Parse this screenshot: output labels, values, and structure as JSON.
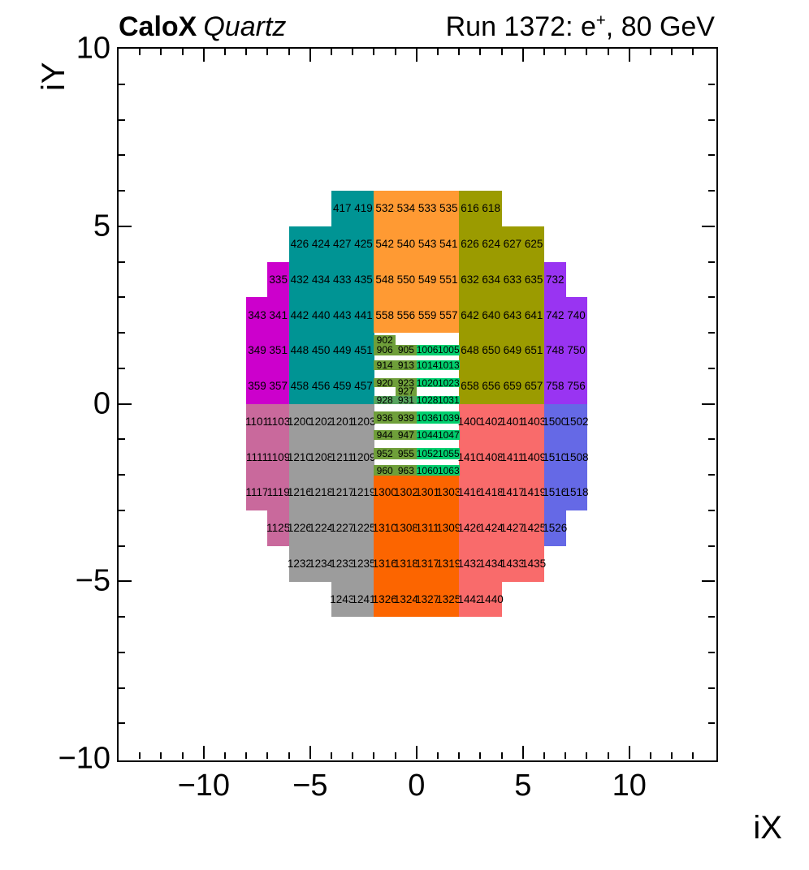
{
  "header": {
    "experiment": "CaloX",
    "detector": "Quartz",
    "run_prefix": "Run 1372: e",
    "run_sup": "+",
    "run_suffix": ", 80 GeV"
  },
  "chart_data": {
    "type": "heatmap",
    "title": "Run 1372: e+, 80 GeV",
    "xlabel": "iX",
    "ylabel": "iY",
    "xlim": [
      -14,
      14
    ],
    "ylim": [
      -10,
      10
    ],
    "grid": false,
    "legend": "none",
    "x_major_ticks": [
      {
        "v": -10,
        "t": "−10"
      },
      {
        "v": -5,
        "t": "−5"
      },
      {
        "v": 0,
        "t": "0"
      },
      {
        "v": 5,
        "t": "5"
      },
      {
        "v": 10,
        "t": "10"
      }
    ],
    "y_major_ticks": [
      {
        "v": -10,
        "t": "−10"
      },
      {
        "v": -5,
        "t": "−5"
      },
      {
        "v": 0,
        "t": "0"
      },
      {
        "v": 5,
        "t": "5"
      },
      {
        "v": 10,
        "t": "10"
      }
    ],
    "minor_tick_step": 1,
    "block_colors": {
      "b300": "#cc00cc",
      "b400": "#009494",
      "b500": "#ff9a33",
      "b600": "#9b9b00",
      "b700": "#9934f2",
      "b900": "#6f9f3a",
      "b928": "#58a55f",
      "b1000": "#00cf6e",
      "b1100": "#c9699c",
      "b1200": "#9c9c9c",
      "b1300": "#fc6500",
      "b1400": "#f96b6b",
      "b1500": "#6569e6"
    },
    "rows": [
      {
        "iy": 6,
        "cells": [
          [
            -4,
            "417",
            "b400"
          ],
          [
            -3,
            "419",
            "b400"
          ],
          [
            -2,
            "532",
            "b500"
          ],
          [
            -1,
            "534",
            "b500"
          ],
          [
            0,
            "533",
            "b500"
          ],
          [
            1,
            "535",
            "b500"
          ],
          [
            2,
            "616",
            "b600"
          ],
          [
            3,
            "618",
            "b600"
          ]
        ]
      },
      {
        "iy": 5,
        "cells": [
          [
            -6,
            "426",
            "b400"
          ],
          [
            -5,
            "424",
            "b400"
          ],
          [
            -4,
            "427",
            "b400"
          ],
          [
            -3,
            "425",
            "b400"
          ],
          [
            -2,
            "542",
            "b500"
          ],
          [
            -1,
            "540",
            "b500"
          ],
          [
            0,
            "543",
            "b500"
          ],
          [
            1,
            "541",
            "b500"
          ],
          [
            2,
            "626",
            "b600"
          ],
          [
            3,
            "624",
            "b600"
          ],
          [
            4,
            "627",
            "b600"
          ],
          [
            5,
            "625",
            "b600"
          ]
        ]
      },
      {
        "iy": 4,
        "cells": [
          [
            -7,
            "335",
            "b300"
          ],
          [
            -6,
            "432",
            "b400"
          ],
          [
            -5,
            "434",
            "b400"
          ],
          [
            -4,
            "433",
            "b400"
          ],
          [
            -3,
            "435",
            "b400"
          ],
          [
            -2,
            "548",
            "b500"
          ],
          [
            -1,
            "550",
            "b500"
          ],
          [
            0,
            "549",
            "b500"
          ],
          [
            1,
            "551",
            "b500"
          ],
          [
            2,
            "632",
            "b600"
          ],
          [
            3,
            "634",
            "b600"
          ],
          [
            4,
            "633",
            "b600"
          ],
          [
            5,
            "635",
            "b600"
          ],
          [
            6,
            "732",
            "b700"
          ]
        ]
      },
      {
        "iy": 3,
        "cells": [
          [
            -8,
            "343",
            "b300"
          ],
          [
            -7,
            "341",
            "b300"
          ],
          [
            -6,
            "442",
            "b400"
          ],
          [
            -5,
            "440",
            "b400"
          ],
          [
            -4,
            "443",
            "b400"
          ],
          [
            -3,
            "441",
            "b400"
          ],
          [
            -2,
            "558",
            "b500"
          ],
          [
            -1,
            "556",
            "b500"
          ],
          [
            0,
            "559",
            "b500"
          ],
          [
            1,
            "557",
            "b500"
          ],
          [
            2,
            "642",
            "b600"
          ],
          [
            3,
            "640",
            "b600"
          ],
          [
            4,
            "643",
            "b600"
          ],
          [
            5,
            "641",
            "b600"
          ],
          [
            6,
            "742",
            "b700"
          ],
          [
            7,
            "740",
            "b700"
          ]
        ]
      },
      {
        "iy": 2,
        "cells": [
          [
            -8,
            "349",
            "b300"
          ],
          [
            -7,
            "351",
            "b300"
          ],
          [
            -6,
            "448",
            "b400"
          ],
          [
            -5,
            "450",
            "b400"
          ],
          [
            -4,
            "449",
            "b400"
          ],
          [
            -3,
            "451",
            "b400"
          ],
          [
            2,
            "648",
            "b600"
          ],
          [
            3,
            "650",
            "b600"
          ],
          [
            4,
            "649",
            "b600"
          ],
          [
            5,
            "651",
            "b600"
          ],
          [
            6,
            "748",
            "b700"
          ],
          [
            7,
            "750",
            "b700"
          ]
        ]
      },
      {
        "iy": 1,
        "cells": [
          [
            -8,
            "359",
            "b300"
          ],
          [
            -7,
            "357",
            "b300"
          ],
          [
            -6,
            "458",
            "b400"
          ],
          [
            -5,
            "456",
            "b400"
          ],
          [
            -4,
            "459",
            "b400"
          ],
          [
            -3,
            "457",
            "b400"
          ],
          [
            2,
            "658",
            "b600"
          ],
          [
            3,
            "656",
            "b600"
          ],
          [
            4,
            "659",
            "b600"
          ],
          [
            5,
            "657",
            "b600"
          ],
          [
            6,
            "758",
            "b700"
          ],
          [
            7,
            "756",
            "b700"
          ]
        ]
      },
      {
        "iy": 0,
        "cells": [
          [
            -8,
            "1101",
            "b1100"
          ],
          [
            -7,
            "1103",
            "b1100"
          ],
          [
            -6,
            "1200",
            "b1200"
          ],
          [
            -5,
            "1202",
            "b1200"
          ],
          [
            -4,
            "1201",
            "b1200"
          ],
          [
            -3,
            "1203",
            "b1200"
          ],
          [
            2,
            "1400",
            "b1400"
          ],
          [
            3,
            "1402",
            "b1400"
          ],
          [
            4,
            "1401",
            "b1400"
          ],
          [
            5,
            "1403",
            "b1400"
          ],
          [
            6,
            "1500",
            "b1500"
          ],
          [
            7,
            "1502",
            "b1500"
          ]
        ]
      },
      {
        "iy": -1,
        "cells": [
          [
            -8,
            "1111",
            "b1100"
          ],
          [
            -7,
            "1109",
            "b1100"
          ],
          [
            -6,
            "1210",
            "b1200"
          ],
          [
            -5,
            "1208",
            "b1200"
          ],
          [
            -4,
            "1211",
            "b1200"
          ],
          [
            -3,
            "1209",
            "b1200"
          ],
          [
            2,
            "1410",
            "b1400"
          ],
          [
            3,
            "1408",
            "b1400"
          ],
          [
            4,
            "1411",
            "b1400"
          ],
          [
            5,
            "1409",
            "b1400"
          ],
          [
            6,
            "1510",
            "b1500"
          ],
          [
            7,
            "1508",
            "b1500"
          ]
        ]
      },
      {
        "iy": -2,
        "cells": [
          [
            -8,
            "1117",
            "b1100"
          ],
          [
            -7,
            "1119",
            "b1100"
          ],
          [
            -6,
            "1216",
            "b1200"
          ],
          [
            -5,
            "1218",
            "b1200"
          ],
          [
            -4,
            "1217",
            "b1200"
          ],
          [
            -3,
            "1219",
            "b1200"
          ],
          [
            -2,
            "1300",
            "b1300"
          ],
          [
            -1,
            "1302",
            "b1300"
          ],
          [
            0,
            "1301",
            "b1300"
          ],
          [
            1,
            "1303",
            "b1300"
          ],
          [
            2,
            "1416",
            "b1400"
          ],
          [
            3,
            "1418",
            "b1400"
          ],
          [
            4,
            "1417",
            "b1400"
          ],
          [
            5,
            "1419",
            "b1400"
          ],
          [
            6,
            "1516",
            "b1500"
          ],
          [
            7,
            "1518",
            "b1500"
          ]
        ]
      },
      {
        "iy": -3,
        "cells": [
          [
            -7,
            "1125",
            "b1100"
          ],
          [
            -6,
            "1226",
            "b1200"
          ],
          [
            -5,
            "1224",
            "b1200"
          ],
          [
            -4,
            "1227",
            "b1200"
          ],
          [
            -3,
            "1225",
            "b1200"
          ],
          [
            -2,
            "1310",
            "b1300"
          ],
          [
            -1,
            "1308",
            "b1300"
          ],
          [
            0,
            "1311",
            "b1300"
          ],
          [
            1,
            "1309",
            "b1300"
          ],
          [
            2,
            "1426",
            "b1400"
          ],
          [
            3,
            "1424",
            "b1400"
          ],
          [
            4,
            "1427",
            "b1400"
          ],
          [
            5,
            "1425",
            "b1400"
          ],
          [
            6,
            "1526",
            "b1500"
          ]
        ]
      },
      {
        "iy": -4,
        "cells": [
          [
            -6,
            "1232",
            "b1200"
          ],
          [
            -5,
            "1234",
            "b1200"
          ],
          [
            -4,
            "1233",
            "b1200"
          ],
          [
            -3,
            "1235",
            "b1200"
          ],
          [
            -2,
            "1316",
            "b1300"
          ],
          [
            -1,
            "1318",
            "b1300"
          ],
          [
            0,
            "1317",
            "b1300"
          ],
          [
            1,
            "1319",
            "b1300"
          ],
          [
            2,
            "1432",
            "b1400"
          ],
          [
            3,
            "1434",
            "b1400"
          ],
          [
            4,
            "1433",
            "b1400"
          ],
          [
            5,
            "1435",
            "b1400"
          ]
        ]
      },
      {
        "iy": -5,
        "cells": [
          [
            -4,
            "1243",
            "b1200"
          ],
          [
            -3,
            "1241",
            "b1200"
          ],
          [
            -2,
            "1326",
            "b1300"
          ],
          [
            -1,
            "1324",
            "b1300"
          ],
          [
            0,
            "1327",
            "b1300"
          ],
          [
            1,
            "1325",
            "b1300"
          ],
          [
            2,
            "1442",
            "b1400"
          ],
          [
            3,
            "1440",
            "b1400"
          ]
        ]
      }
    ],
    "fine_rows": [
      {
        "top": 1.94,
        "h": 0.29,
        "cells": [
          [
            -2,
            "902",
            "b900"
          ]
        ]
      },
      {
        "top": 1.66,
        "h": 0.28,
        "cells": [
          [
            -2,
            "906",
            "b900"
          ],
          [
            -1,
            "905",
            "b900"
          ],
          [
            0,
            "1006",
            "b1000"
          ],
          [
            1,
            "1005",
            "b1000"
          ]
        ]
      },
      {
        "top": 1.23,
        "h": 0.27,
        "cells": [
          [
            -2,
            "914",
            "b900"
          ],
          [
            -1,
            "913",
            "b900"
          ],
          [
            0,
            "1014",
            "b1000"
          ],
          [
            1,
            "1013",
            "b1000"
          ]
        ]
      },
      {
        "top": 0.73,
        "h": 0.26,
        "cells": [
          [
            -2,
            "920",
            "b900"
          ],
          [
            -1,
            "923",
            "b900"
          ],
          [
            0,
            "1020",
            "b1000"
          ],
          [
            1,
            "1023",
            "b1000"
          ]
        ]
      },
      {
        "top": 0.47,
        "h": 0.24,
        "cells": [
          [
            -1,
            "927",
            "b900"
          ]
        ]
      },
      {
        "top": 0.22,
        "h": 0.23,
        "cells": [
          [
            -2,
            "928",
            "b928"
          ],
          [
            -1,
            "931",
            "b928"
          ],
          [
            0,
            "1028",
            "b1000"
          ],
          [
            1,
            "1031",
            "b1000"
          ]
        ]
      },
      {
        "top": -0.22,
        "h": 0.34,
        "cells": [
          [
            -2,
            "936",
            "b900"
          ],
          [
            -1,
            "939",
            "b900"
          ],
          [
            0,
            "1036",
            "b1000"
          ],
          [
            1,
            "1039",
            "b1000"
          ]
        ]
      },
      {
        "top": -0.74,
        "h": 0.27,
        "cells": [
          [
            -2,
            "944",
            "b900"
          ],
          [
            -1,
            "947",
            "b900"
          ],
          [
            0,
            "1044",
            "b1000"
          ],
          [
            1,
            "1047",
            "b1000"
          ]
        ]
      },
      {
        "top": -1.25,
        "h": 0.3,
        "cells": [
          [
            -2,
            "952",
            "b900"
          ],
          [
            -1,
            "955",
            "b900"
          ],
          [
            0,
            "1052",
            "b1000"
          ],
          [
            1,
            "1055",
            "b1000"
          ]
        ]
      },
      {
        "top": -1.73,
        "h": 0.29,
        "cells": [
          [
            -2,
            "960",
            "b900"
          ],
          [
            -1,
            "963",
            "b900"
          ],
          [
            0,
            "1060",
            "b1000"
          ],
          [
            1,
            "1063",
            "b1000"
          ]
        ]
      }
    ]
  }
}
